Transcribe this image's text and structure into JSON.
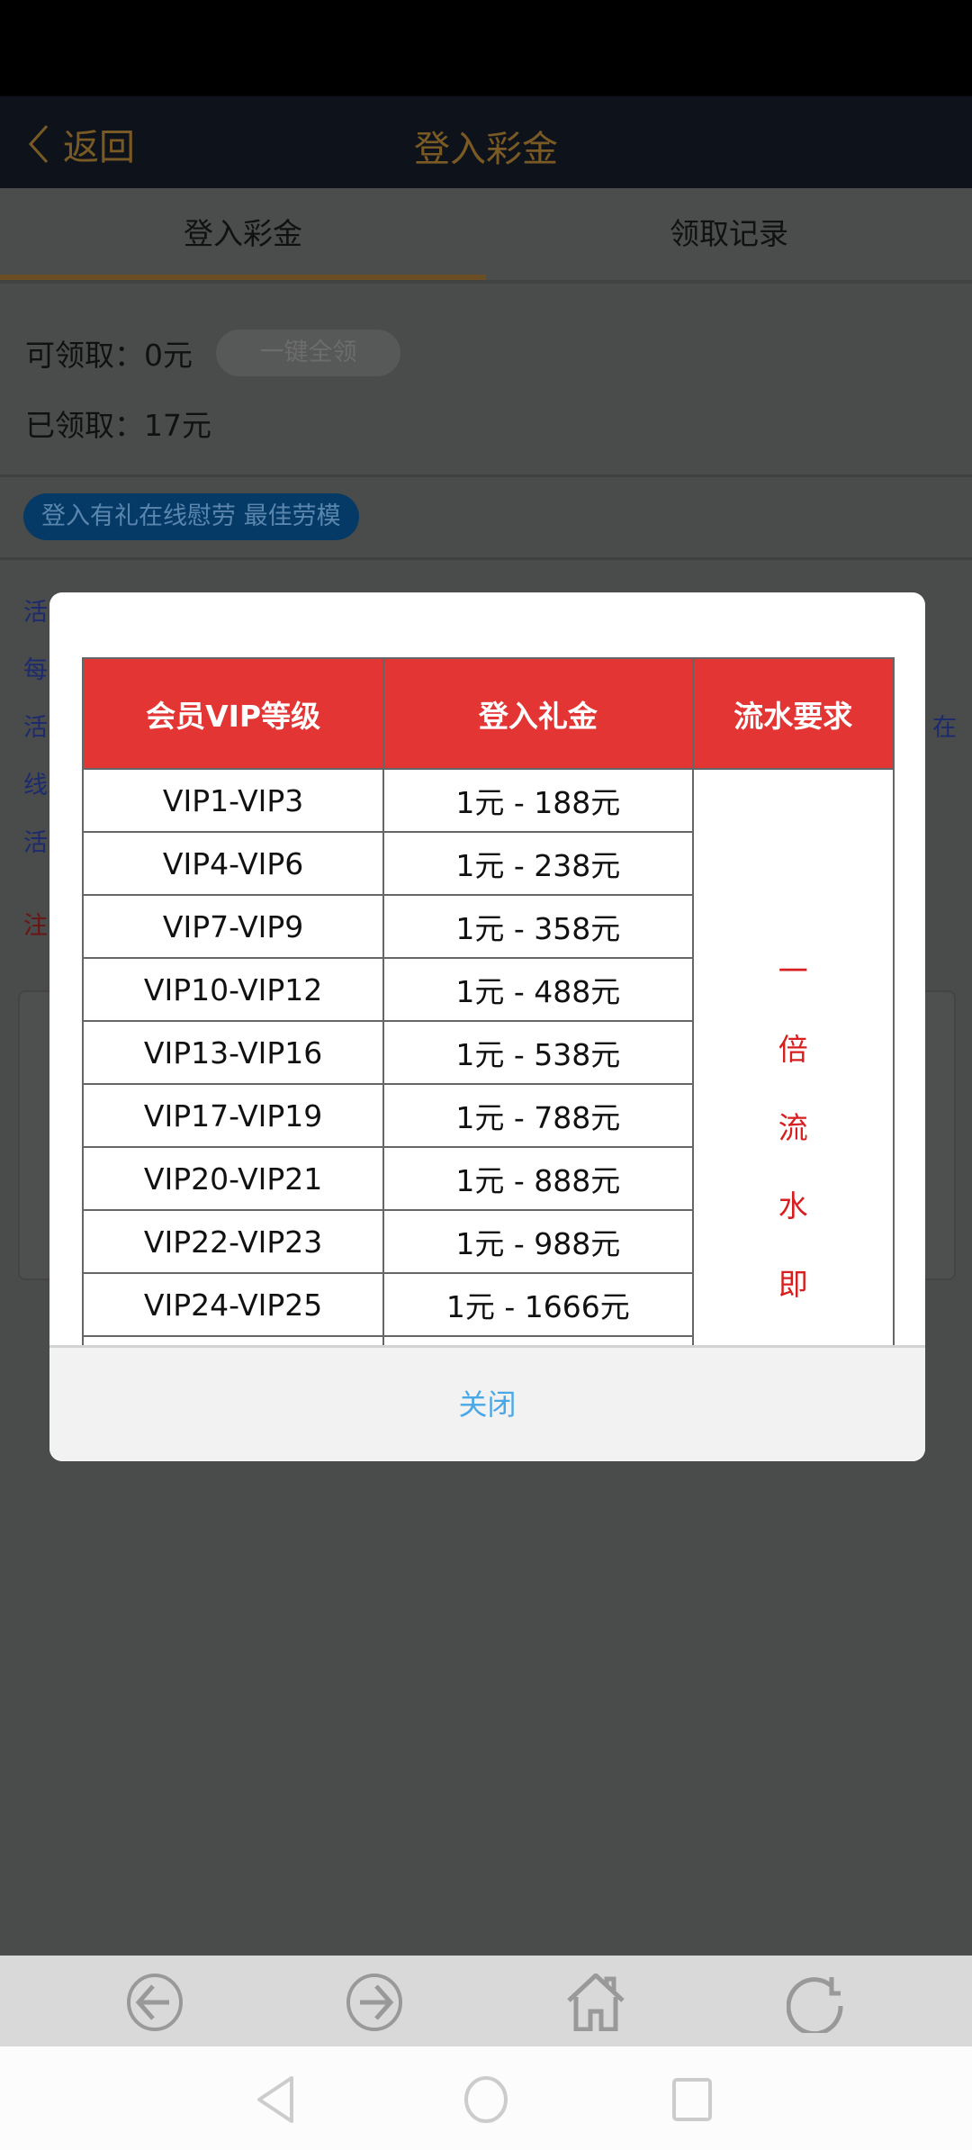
{
  "header": {
    "back_label": "返回",
    "title": "登入彩金"
  },
  "tabs": [
    {
      "label": "登入彩金",
      "active": true
    },
    {
      "label": "领取记录",
      "active": false
    }
  ],
  "summary": {
    "available_label": "可领取：0元",
    "claim_all_button": "一键全领",
    "claimed_label": "已领取：17元"
  },
  "banner_pill": "登入有礼在线慰劳 最佳劳模",
  "background_text": {
    "lines": [
      "活",
      "每",
      "活",
      "线",
      "活"
    ],
    "right_fragment": "在",
    "note": "注"
  },
  "modal": {
    "table": {
      "headers": [
        "会员VIP等级",
        "登入礼金",
        "流水要求"
      ],
      "rows": [
        [
          "VIP1-VIP3",
          "1元 - 188元"
        ],
        [
          "VIP4-VIP6",
          "1元 - 238元"
        ],
        [
          "VIP7-VIP9",
          "1元 - 358元"
        ],
        [
          "VIP10-VIP12",
          "1元 - 488元"
        ],
        [
          "VIP13-VIP16",
          "1元 - 538元"
        ],
        [
          "VIP17-VIP19",
          "1元 - 788元"
        ],
        [
          "VIP20-VIP21",
          "1元 - 888元"
        ],
        [
          "VIP22-VIP23",
          "1元 - 988元"
        ],
        [
          "VIP24-VIP25",
          "1元 - 1666元"
        ],
        [
          "",
          ""
        ]
      ],
      "requirement_chars": [
        "一",
        "倍",
        "流",
        "水",
        "即"
      ]
    },
    "close_button": "关闭"
  },
  "colors": {
    "header_bg": "#0e131b",
    "gold": "#7a5a24",
    "table_header": "#e43535",
    "requirement_red": "#d81e1e",
    "close_blue": "#4aa8e8",
    "pill_bg": "#053a66"
  },
  "browser_bar": {
    "icons": [
      "back-circle-icon",
      "forward-circle-icon",
      "home-icon",
      "refresh-icon"
    ]
  },
  "system_nav": {
    "icons": [
      "nav-back-icon",
      "nav-home-icon",
      "nav-recents-icon"
    ]
  }
}
